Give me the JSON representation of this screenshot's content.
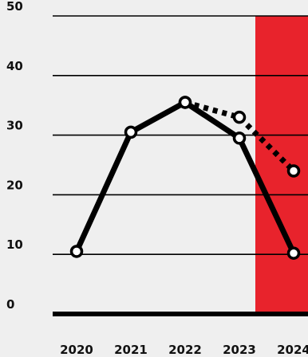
{
  "chart_data": {
    "type": "line",
    "x": [
      "2020",
      "2021",
      "2022",
      "2023",
      "2024"
    ],
    "ylim": [
      0,
      50
    ],
    "yticks": [
      "0",
      "10",
      "20",
      "30",
      "40",
      "50"
    ],
    "grid": true,
    "highlight": {
      "category": "2024",
      "color": "#e8232c"
    },
    "series": [
      {
        "style": "solid",
        "values": [
          10.5,
          30.5,
          35.5,
          29.5,
          10.2
        ]
      },
      {
        "style": "dotted",
        "x": [
          "2022",
          "2023",
          "2024"
        ],
        "values": [
          35.5,
          33.0,
          24.0
        ]
      }
    ]
  },
  "colors": {
    "background": "#efefef",
    "line": "#000000",
    "marker_fill": "#ffffff",
    "axis_text": "#111111",
    "highlight_text": "#e8232c"
  }
}
